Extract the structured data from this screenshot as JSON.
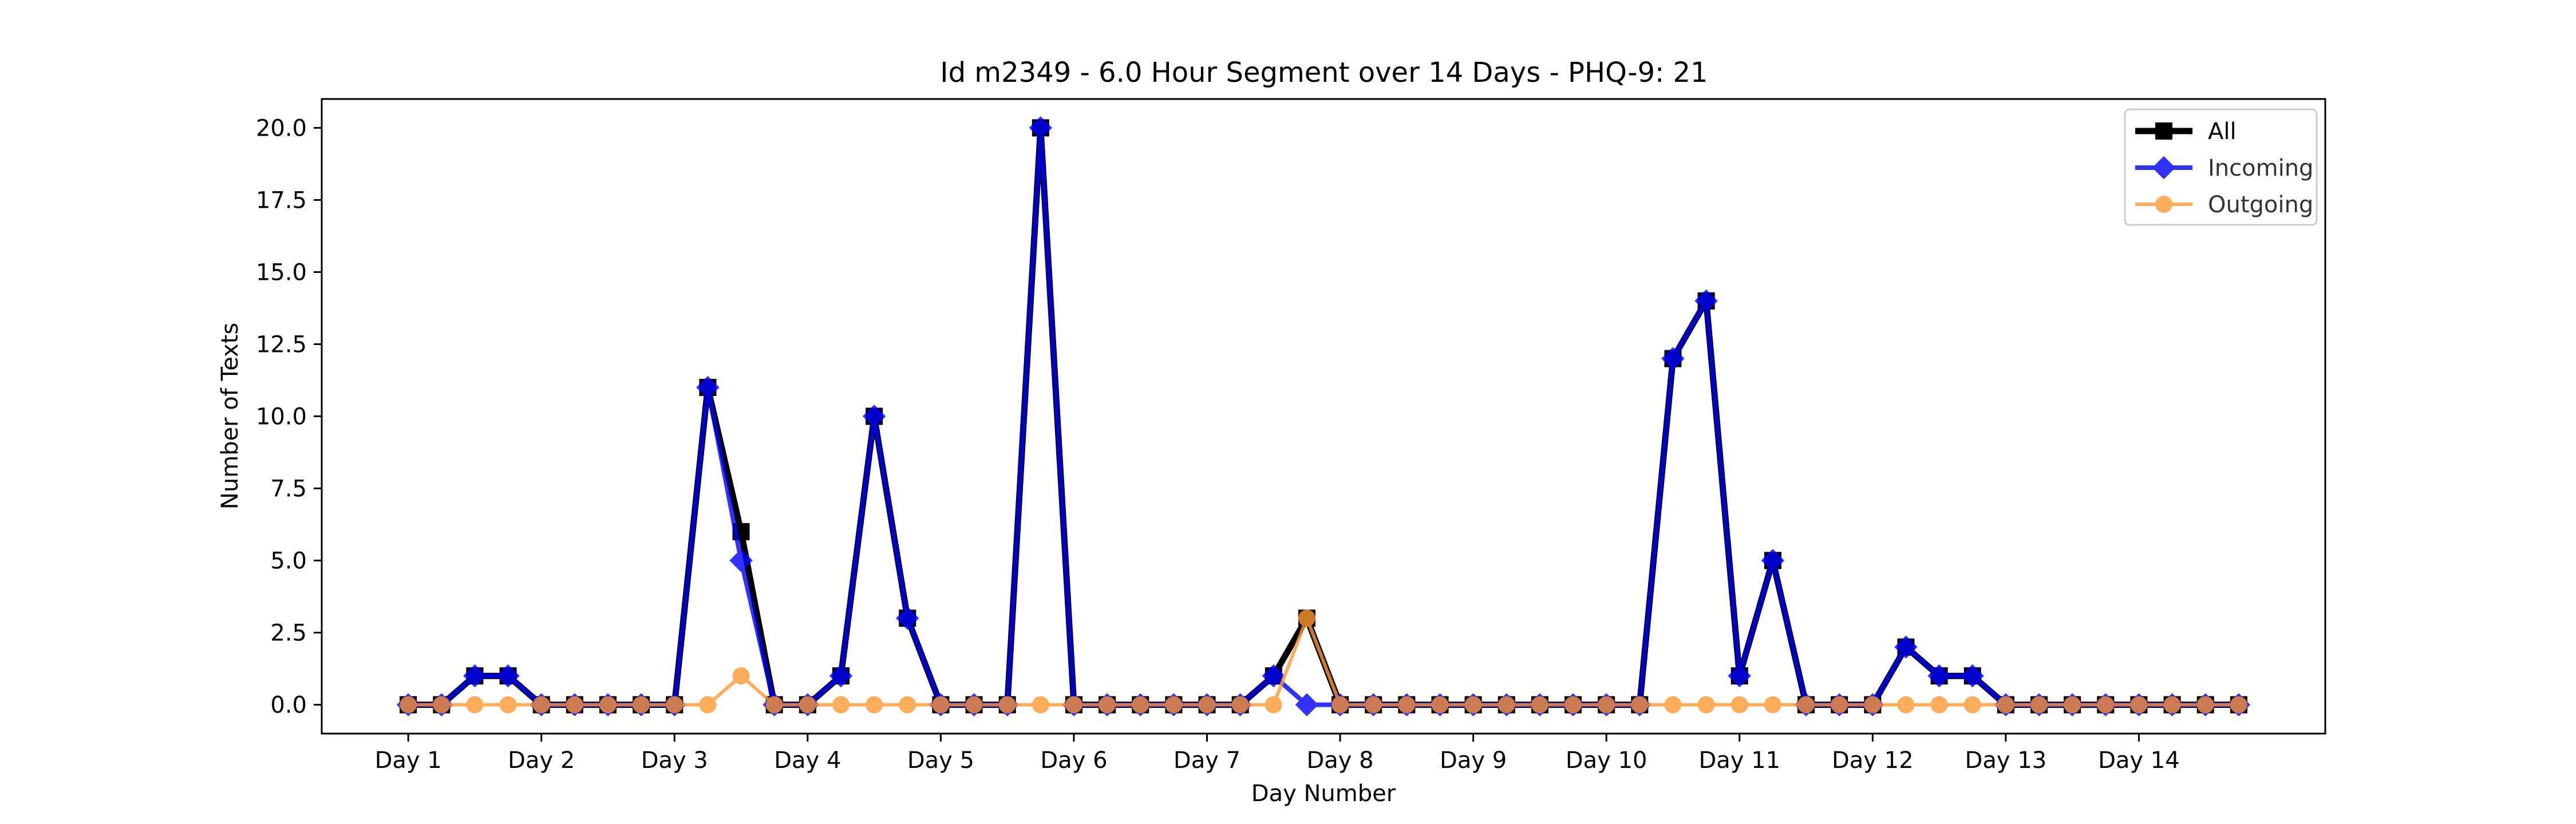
{
  "chart_data": {
    "type": "line",
    "title": "Id m2349 - 6.0 Hour Segment over 14 Days - PHQ-9: 21",
    "xlabel": "Day Number",
    "ylabel": "Number of Texts",
    "ylim": [
      -1.0,
      21.0
    ],
    "yticks": [
      0.0,
      2.5,
      5.0,
      7.5,
      10.0,
      12.5,
      15.0,
      17.5,
      20.0
    ],
    "ytick_labels": [
      "0.0",
      "2.5",
      "5.0",
      "7.5",
      "10.0",
      "12.5",
      "15.0",
      "17.5",
      "20.0"
    ],
    "xticks": [
      0,
      4,
      8,
      12,
      16,
      20,
      24,
      28,
      32,
      36,
      40,
      44,
      48,
      52
    ],
    "xtick_labels": [
      "Day 1",
      "Day 2",
      "Day 3",
      "Day 4",
      "Day 5",
      "Day 6",
      "Day 7",
      "Day 8",
      "Day 9",
      "Day 10",
      "Day 11",
      "Day 12",
      "Day 13",
      "Day 14"
    ],
    "legend_position": "top-right",
    "grid": false,
    "series": [
      {
        "name": "All",
        "color": "#000000",
        "marker": "square",
        "values": [
          0,
          0,
          1,
          1,
          0,
          0,
          0,
          0,
          0,
          11,
          6,
          0,
          0,
          1,
          10,
          3,
          0,
          0,
          0,
          20,
          0,
          0,
          0,
          0,
          0,
          0,
          1,
          3,
          0,
          0,
          0,
          0,
          0,
          0,
          0,
          0,
          0,
          0,
          12,
          14,
          1,
          5,
          0,
          0,
          0,
          2,
          1,
          1,
          0,
          0,
          0,
          0,
          0,
          0,
          0,
          0
        ]
      },
      {
        "name": "Incoming",
        "color": "#0000ff",
        "marker": "diamond",
        "values": [
          0,
          0,
          1,
          1,
          0,
          0,
          0,
          0,
          0,
          11,
          5,
          0,
          0,
          1,
          10,
          3,
          0,
          0,
          0,
          20,
          0,
          0,
          0,
          0,
          0,
          0,
          1,
          0,
          0,
          0,
          0,
          0,
          0,
          0,
          0,
          0,
          0,
          0,
          12,
          14,
          1,
          5,
          0,
          0,
          0,
          2,
          1,
          1,
          0,
          0,
          0,
          0,
          0,
          0,
          0,
          0
        ]
      },
      {
        "name": "Outgoing",
        "color": "#ff9933",
        "marker": "circle",
        "values": [
          0,
          0,
          0,
          0,
          0,
          0,
          0,
          0,
          0,
          0,
          1,
          0,
          0,
          0,
          0,
          0,
          0,
          0,
          0,
          0,
          0,
          0,
          0,
          0,
          0,
          0,
          0,
          3,
          0,
          0,
          0,
          0,
          0,
          0,
          0,
          0,
          0,
          0,
          0,
          0,
          0,
          0,
          0,
          0,
          0,
          0,
          0,
          0,
          0,
          0,
          0,
          0,
          0,
          0,
          0,
          0
        ]
      }
    ]
  }
}
